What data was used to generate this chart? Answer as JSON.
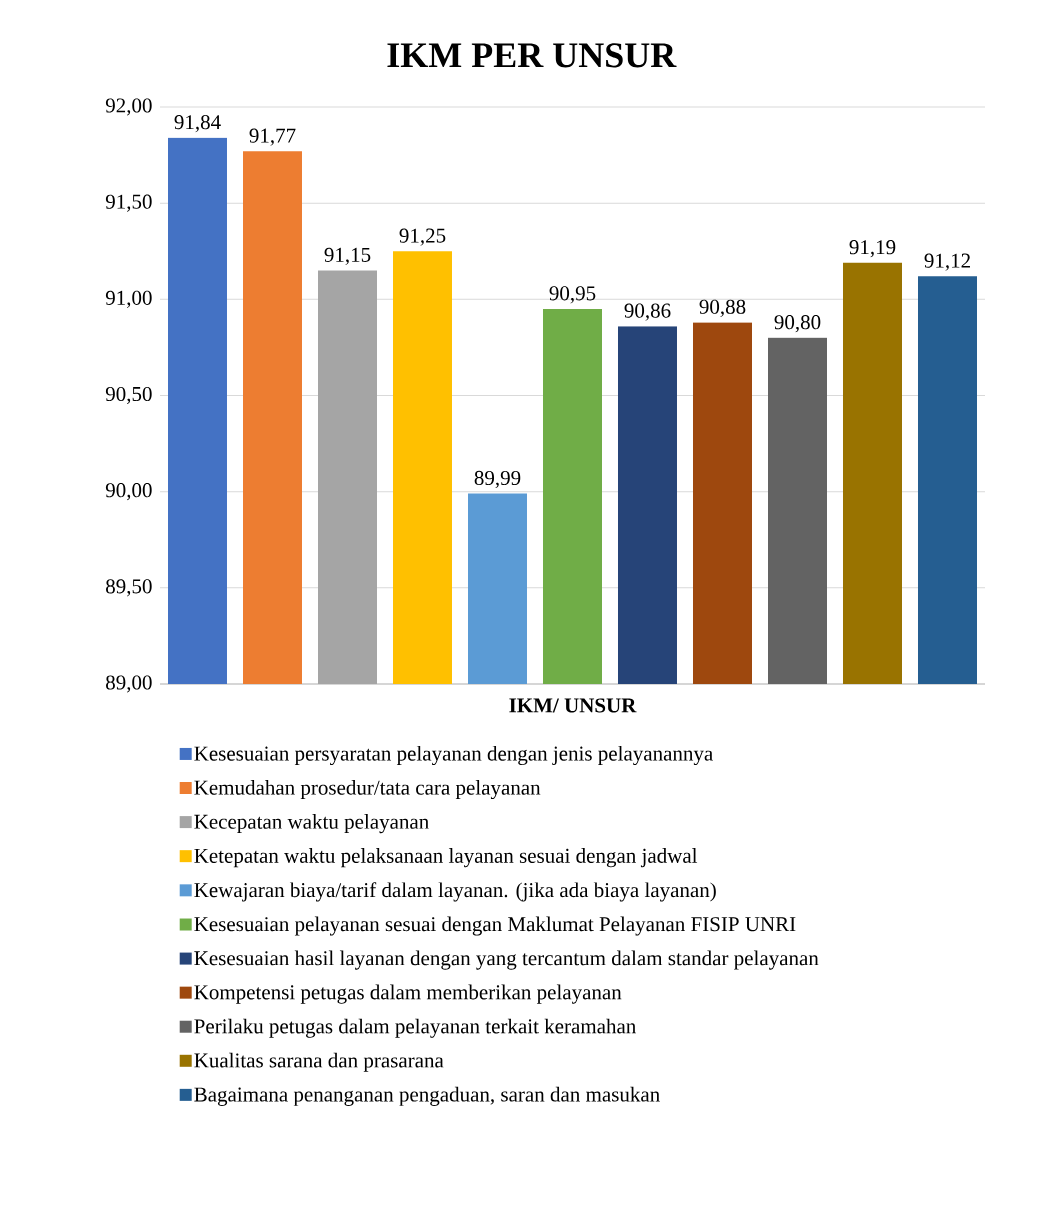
{
  "chart_data": {
    "type": "bar",
    "title": "IKM PER UNSUR",
    "xlabel": "IKM/ UNSUR",
    "categories": [
      null
    ],
    "series": [
      {
        "name": "Kesesuaian persyaratan pelayanan dengan jenis pelayanannya",
        "color": "#4472c4",
        "values": [
          91.84
        ],
        "value_labels": [
          "91,84"
        ]
      },
      {
        "name": "Kemudahan prosedur/tata cara pelayanan",
        "color": "#ed7d31",
        "values": [
          91.77
        ],
        "value_labels": [
          "91,77"
        ]
      },
      {
        "name": "Kecepatan waktu pelayanan",
        "color": "#a5a5a5",
        "values": [
          91.15
        ],
        "value_labels": [
          "91,15"
        ]
      },
      {
        "name": "Ketepatan waktu pelaksanaan layanan sesuai dengan jadwal",
        "color": "#ffc000",
        "values": [
          91.25
        ],
        "value_labels": [
          "91,25"
        ]
      },
      {
        "name": "Kewajaran biaya/tarif dalam layanan. (jika ada biaya layanan)",
        "color": "#5b9bd5",
        "values": [
          89.99
        ],
        "value_labels": [
          "89,99"
        ]
      },
      {
        "name": "Kesesuaian pelayanan sesuai dengan Maklumat Pelayanan FISIP UNRI",
        "color": "#70ad47",
        "values": [
          90.95
        ],
        "value_labels": [
          "90,95"
        ]
      },
      {
        "name": "Kesesuaian hasil layanan dengan yang tercantum dalam standar pelayanan",
        "color": "#264478",
        "values": [
          90.86
        ],
        "value_labels": [
          "90,86"
        ]
      },
      {
        "name": "Kompetensi petugas dalam memberikan pelayanan",
        "color": "#9e480e",
        "values": [
          90.88
        ],
        "value_labels": [
          "90,88"
        ]
      },
      {
        "name": "Perilaku petugas dalam pelayanan terkait keramahan",
        "color": "#636363",
        "values": [
          90.8
        ],
        "value_labels": [
          "90,80"
        ]
      },
      {
        "name": "Kualitas sarana dan prasarana",
        "color": "#997300",
        "values": [
          91.19
        ],
        "value_labels": [
          "91,19"
        ]
      },
      {
        "name": "Bagaimana penanganan pengaduan, saran dan masukan",
        "color": "#255e91",
        "values": [
          91.12
        ],
        "value_labels": [
          "91,12"
        ]
      }
    ],
    "ylim": [
      89,
      92
    ],
    "yticks": [
      {
        "value": 89,
        "label": "89,00"
      },
      {
        "value": 89.5,
        "label": "89,50"
      },
      {
        "value": 90,
        "label": "90,00"
      },
      {
        "value": 90.5,
        "label": "90,50"
      },
      {
        "value": 91,
        "label": "91,00"
      },
      {
        "value": 91.5,
        "label": "91,50"
      },
      {
        "value": 92,
        "label": "92,00"
      }
    ],
    "grid": "y",
    "legend": "bottom"
  }
}
